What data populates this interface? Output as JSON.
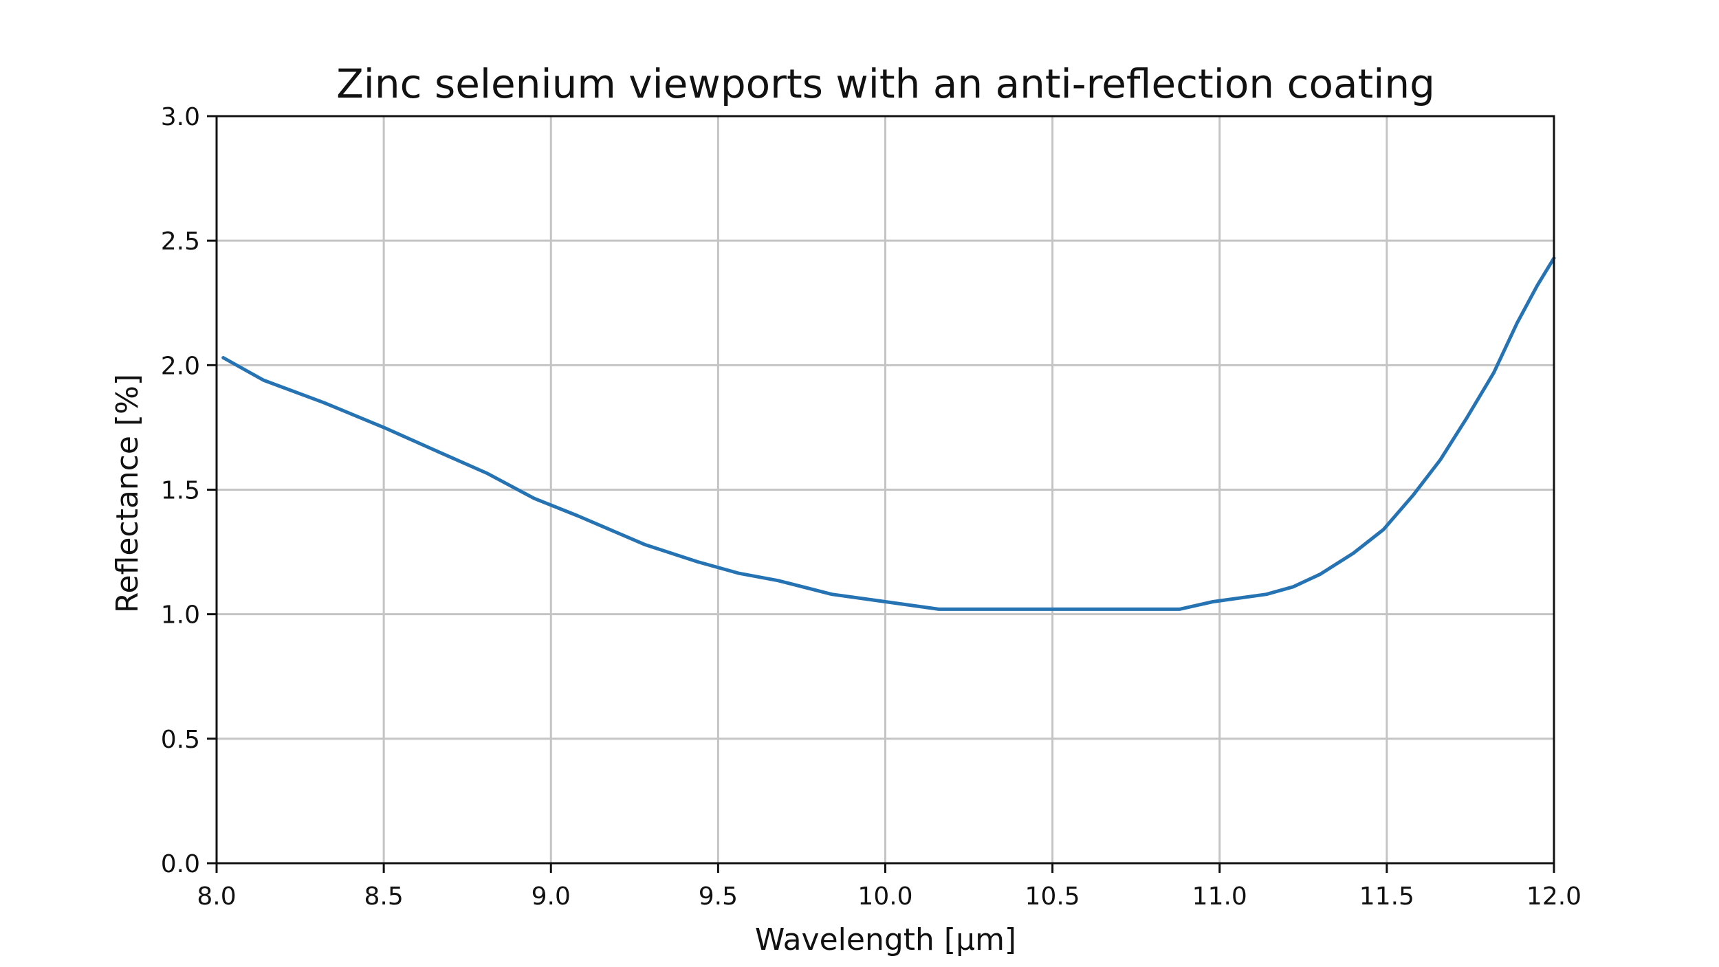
{
  "chart_data": {
    "type": "line",
    "title": "Zinc selenium viewports with an anti-reflection coating",
    "xlabel": "Wavelength [µm]",
    "ylabel": "Reflectance [%]",
    "xlim": [
      8.0,
      12.0
    ],
    "ylim": [
      0.0,
      3.0
    ],
    "xticks": [
      8.0,
      8.5,
      9.0,
      9.5,
      10.0,
      10.5,
      11.0,
      11.5,
      12.0
    ],
    "yticks": [
      0.0,
      0.5,
      1.0,
      1.5,
      2.0,
      2.5,
      3.0
    ],
    "xtick_labels": [
      "8.0",
      "8.5",
      "9.0",
      "9.5",
      "10.0",
      "10.5",
      "11.0",
      "11.5",
      "12.0"
    ],
    "ytick_labels": [
      "0.0",
      "0.5",
      "1.0",
      "1.5",
      "2.0",
      "2.5",
      "3.0"
    ],
    "grid": true,
    "legend": "none",
    "series": [
      {
        "color": "#2673b4",
        "x": [
          8.02,
          8.14,
          8.32,
          8.5,
          8.65,
          8.81,
          8.95,
          9.08,
          9.28,
          9.44,
          9.56,
          9.68,
          9.84,
          10.0,
          10.16,
          10.3,
          10.5,
          10.7,
          10.88,
          10.98,
          11.14,
          11.22,
          11.3,
          11.4,
          11.49,
          11.58,
          11.66,
          11.74,
          11.82,
          11.89,
          11.95,
          12.0
        ],
        "y": [
          2.03,
          1.94,
          1.85,
          1.75,
          1.66,
          1.565,
          1.465,
          1.395,
          1.28,
          1.21,
          1.165,
          1.135,
          1.08,
          1.05,
          1.02,
          1.02,
          1.02,
          1.02,
          1.02,
          1.05,
          1.08,
          1.11,
          1.16,
          1.245,
          1.34,
          1.48,
          1.62,
          1.79,
          1.97,
          2.17,
          2.32,
          2.43
        ]
      }
    ]
  }
}
